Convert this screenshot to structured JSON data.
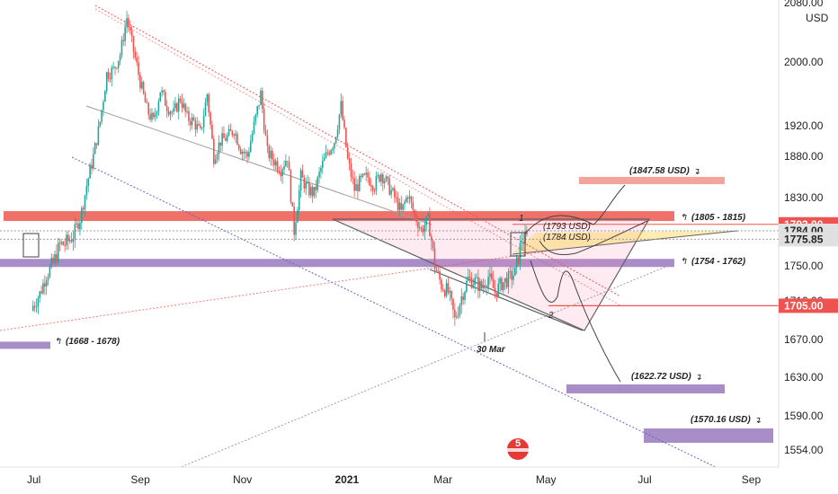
{
  "chart_data": {
    "type": "candlestick",
    "title": "",
    "xlabel": "",
    "ylabel": "",
    "currency_label": "USD",
    "x_ticks": [
      {
        "label": "Jul",
        "bold": false,
        "day": 0
      },
      {
        "label": "Sep",
        "bold": false,
        "day": 62
      },
      {
        "label": "Nov",
        "bold": false,
        "day": 123
      },
      {
        "label": "2021",
        "bold": true,
        "day": 184
      },
      {
        "label": "Mar",
        "bold": false,
        "day": 243
      },
      {
        "label": "May",
        "bold": false,
        "day": 304
      },
      {
        "label": "Jul",
        "bold": false,
        "day": 365
      },
      {
        "label": "Sep",
        "bold": false,
        "day": 427
      }
    ],
    "y_ticks": [
      "2080.00",
      "2000.00",
      "1920.00",
      "1880.00",
      "1830.00",
      "1750.00",
      "1710.00",
      "1670.00",
      "1630.00",
      "1590.00",
      "1554.00"
    ],
    "price_badges": [
      {
        "label": "1793.00",
        "value": 1793.0,
        "color": "#ef5350",
        "text_color": "#ffffff"
      },
      {
        "label": "1784.00",
        "value": 1784.0,
        "color": "#e0e0e0",
        "text_color": "#222222"
      },
      {
        "label": "1775.85",
        "value": 1775.85,
        "color": "#e0e0e0",
        "text_color": "#222222"
      },
      {
        "label": "1705.00",
        "value": 1705.0,
        "color": "#ef5350",
        "text_color": "#ffffff"
      }
    ],
    "zones": [
      {
        "label": "(1805 - 1815)",
        "low": 1805,
        "high": 1815,
        "color": "#f0706a"
      },
      {
        "label": "(1754 - 1762)",
        "low": 1754,
        "high": 1762,
        "color": "#a98dc8"
      },
      {
        "label": "(1668 - 1678)",
        "low": 1668,
        "high": 1678,
        "color": "#a98dc8"
      },
      {
        "label": "(1847.58 USD)",
        "value": 1847.58,
        "color": "#f4a49a"
      },
      {
        "label": "(1622.72 USD)",
        "value": 1622.72,
        "color": "#a98dc8"
      },
      {
        "label": "(1570.16 USD)",
        "value": 1570.16,
        "color": "#a98dc8"
      }
    ],
    "annotations": [
      "(1793 USD)",
      "(1784 USD)",
      "1",
      "2",
      "30 Mar"
    ],
    "levels": {
      "res_main": 1793.0,
      "res_2": 1784.0,
      "last_price": 1775.85,
      "support": 1705.0
    },
    "candles_approx_close": [
      [
        0,
        1705
      ],
      [
        4,
        1718
      ],
      [
        8,
        1740
      ],
      [
        12,
        1752
      ],
      [
        16,
        1770
      ],
      [
        20,
        1772
      ],
      [
        24,
        1780
      ],
      [
        28,
        1800
      ],
      [
        32,
        1845
      ],
      [
        36,
        1880
      ],
      [
        40,
        1925
      ],
      [
        44,
        1985
      ],
      [
        48,
        1990
      ],
      [
        52,
        2010
      ],
      [
        56,
        2060
      ],
      [
        60,
        2015
      ],
      [
        64,
        1975
      ],
      [
        68,
        1940
      ],
      [
        72,
        1925
      ],
      [
        76,
        1965
      ],
      [
        80,
        1945
      ],
      [
        84,
        1935
      ],
      [
        88,
        1955
      ],
      [
        92,
        1930
      ],
      [
        96,
        1925
      ],
      [
        100,
        1910
      ],
      [
        104,
        1960
      ],
      [
        108,
        1880
      ],
      [
        112,
        1900
      ],
      [
        116,
        1905
      ],
      [
        120,
        1915
      ],
      [
        124,
        1890
      ],
      [
        128,
        1880
      ],
      [
        132,
        1920
      ],
      [
        136,
        1960
      ],
      [
        140,
        1885
      ],
      [
        144,
        1875
      ],
      [
        148,
        1865
      ],
      [
        152,
        1880
      ],
      [
        156,
        1785
      ],
      [
        160,
        1855
      ],
      [
        164,
        1840
      ],
      [
        168,
        1835
      ],
      [
        172,
        1865
      ],
      [
        176,
        1885
      ],
      [
        180,
        1900
      ],
      [
        184,
        1945
      ],
      [
        188,
        1875
      ],
      [
        192,
        1840
      ],
      [
        196,
        1850
      ],
      [
        200,
        1855
      ],
      [
        204,
        1845
      ],
      [
        208,
        1860
      ],
      [
        212,
        1845
      ],
      [
        216,
        1830
      ],
      [
        220,
        1810
      ],
      [
        224,
        1835
      ],
      [
        228,
        1805
      ],
      [
        232,
        1785
      ],
      [
        236,
        1800
      ],
      [
        240,
        1750
      ],
      [
        244,
        1728
      ],
      [
        248,
        1720
      ],
      [
        252,
        1690
      ],
      [
        256,
        1715
      ],
      [
        260,
        1735
      ],
      [
        264,
        1732
      ],
      [
        268,
        1725
      ],
      [
        272,
        1738
      ],
      [
        276,
        1720
      ],
      [
        280,
        1730
      ],
      [
        284,
        1735
      ],
      [
        288,
        1742
      ],
      [
        292,
        1776
      ]
    ],
    "logo_text": "5"
  }
}
